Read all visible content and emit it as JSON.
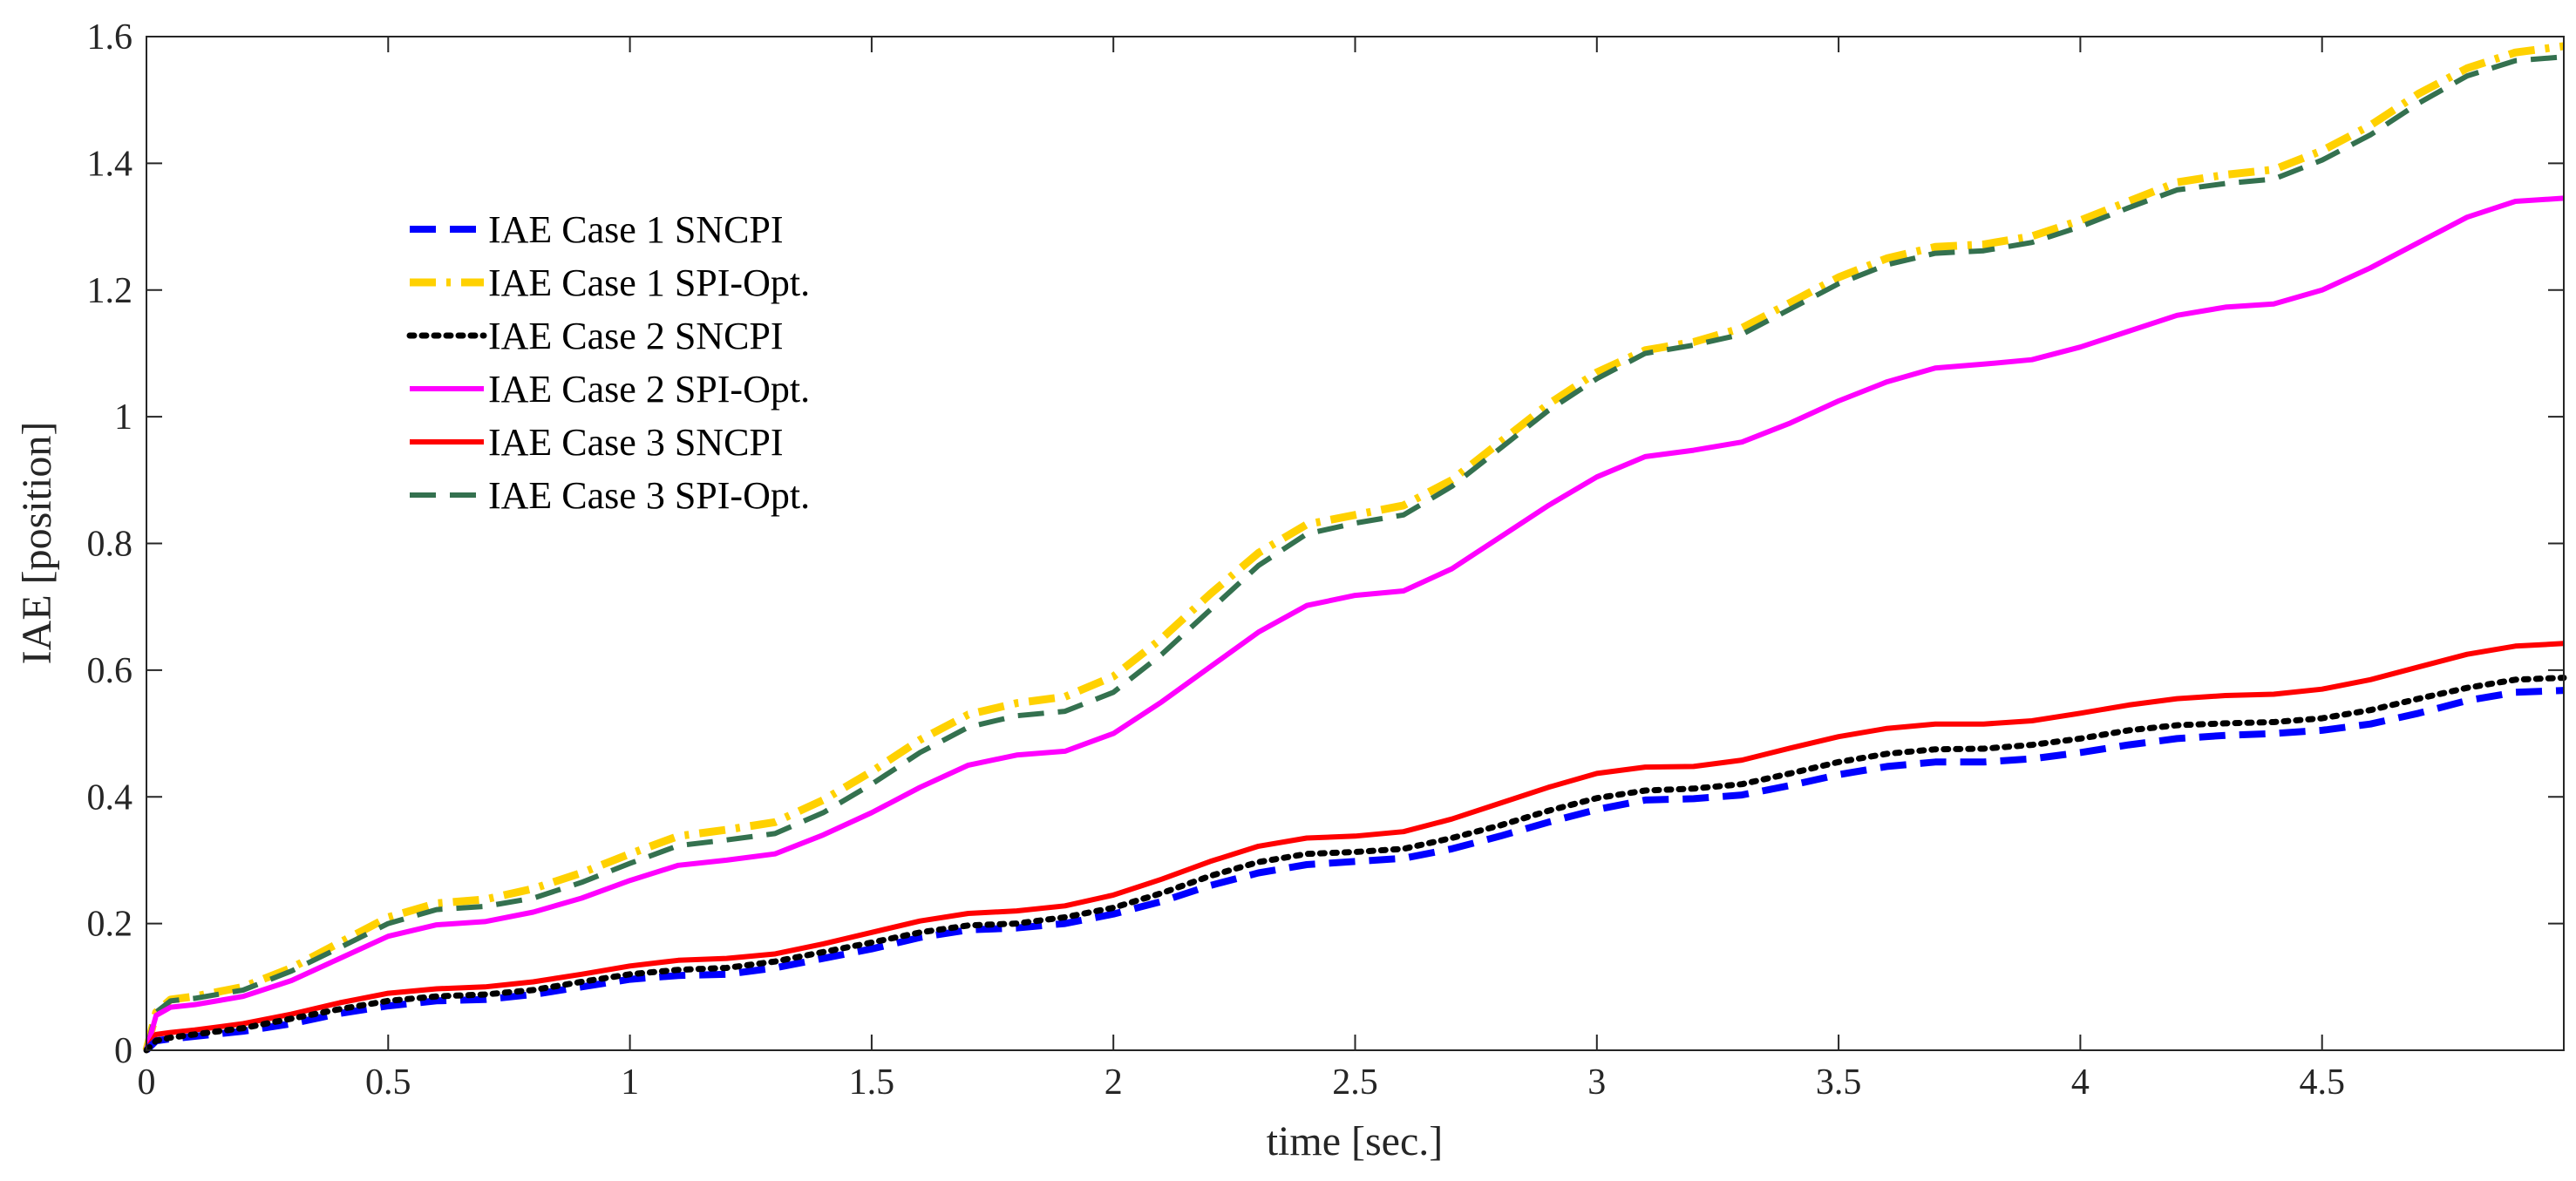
{
  "chart_data": {
    "type": "line",
    "title": "",
    "xlabel": "time  [sec.]",
    "ylabel": "IAE [position]",
    "xlim": [
      0,
      5
    ],
    "ylim": [
      0,
      1.6
    ],
    "x_ticks": [
      0,
      0.5,
      1,
      1.5,
      2,
      2.5,
      3,
      3.5,
      4,
      4.5
    ],
    "x_tick_labels": [
      "0",
      "0.5",
      "1",
      "1.5",
      "2",
      "2.5",
      "3",
      "3.5",
      "4",
      "4.5"
    ],
    "y_ticks": [
      0,
      0.2,
      0.4,
      0.6,
      0.8,
      1,
      1.2,
      1.4,
      1.6
    ],
    "y_tick_labels": [
      "0",
      "0.2",
      "0.4",
      "0.6",
      "0.8",
      "1",
      "1.2",
      "1.4",
      "1.6"
    ],
    "grid": false,
    "legend_position": "upper-left",
    "x": [
      0,
      0.02,
      0.05,
      0.1,
      0.2,
      0.3,
      0.4,
      0.5,
      0.6,
      0.7,
      0.8,
      0.9,
      1.0,
      1.1,
      1.2,
      1.3,
      1.4,
      1.5,
      1.6,
      1.7,
      1.8,
      1.9,
      2.0,
      2.1,
      2.2,
      2.3,
      2.4,
      2.5,
      2.6,
      2.7,
      2.8,
      2.9,
      3.0,
      3.1,
      3.2,
      3.3,
      3.4,
      3.5,
      3.6,
      3.7,
      3.8,
      3.9,
      4.0,
      4.1,
      4.2,
      4.3,
      4.4,
      4.5,
      4.6,
      4.7,
      4.8,
      4.9,
      5.0
    ],
    "series": [
      {
        "name": "IAE Case 1 SNCPI",
        "color": "#0000ff",
        "style": "dashed",
        "values": [
          0,
          0.015,
          0.018,
          0.022,
          0.03,
          0.042,
          0.058,
          0.07,
          0.078,
          0.08,
          0.088,
          0.1,
          0.112,
          0.118,
          0.12,
          0.13,
          0.145,
          0.16,
          0.178,
          0.19,
          0.193,
          0.2,
          0.215,
          0.235,
          0.26,
          0.28,
          0.293,
          0.298,
          0.303,
          0.318,
          0.338,
          0.36,
          0.38,
          0.395,
          0.397,
          0.403,
          0.418,
          0.435,
          0.448,
          0.455,
          0.455,
          0.46,
          0.47,
          0.482,
          0.492,
          0.497,
          0.5,
          0.505,
          0.515,
          0.532,
          0.552,
          0.565,
          0.568
        ]
      },
      {
        "name": "IAE Case 1 SPI-Opt.",
        "color": "#ffd100",
        "style": "dash-dot",
        "values": [
          0,
          0.06,
          0.08,
          0.085,
          0.1,
          0.13,
          0.17,
          0.21,
          0.232,
          0.238,
          0.255,
          0.28,
          0.31,
          0.338,
          0.348,
          0.36,
          0.395,
          0.44,
          0.49,
          0.53,
          0.548,
          0.558,
          0.59,
          0.65,
          0.72,
          0.785,
          0.83,
          0.845,
          0.86,
          0.9,
          0.96,
          1.02,
          1.07,
          1.105,
          1.118,
          1.14,
          1.18,
          1.22,
          1.25,
          1.268,
          1.272,
          1.285,
          1.31,
          1.34,
          1.37,
          1.382,
          1.39,
          1.42,
          1.46,
          1.51,
          1.55,
          1.575,
          1.585
        ]
      },
      {
        "name": "IAE Case 2 SNCPI",
        "color": "#000000",
        "style": "dotted",
        "values": [
          0,
          0.015,
          0.02,
          0.025,
          0.035,
          0.05,
          0.065,
          0.078,
          0.085,
          0.088,
          0.095,
          0.108,
          0.12,
          0.127,
          0.13,
          0.14,
          0.155,
          0.17,
          0.186,
          0.197,
          0.2,
          0.21,
          0.225,
          0.248,
          0.275,
          0.297,
          0.31,
          0.313,
          0.318,
          0.335,
          0.355,
          0.378,
          0.398,
          0.41,
          0.413,
          0.42,
          0.437,
          0.455,
          0.468,
          0.475,
          0.476,
          0.482,
          0.492,
          0.505,
          0.513,
          0.516,
          0.518,
          0.524,
          0.537,
          0.555,
          0.572,
          0.585,
          0.588
        ]
      },
      {
        "name": "IAE Case 2 SPI-Opt.",
        "color": "#ff00ff",
        "style": "solid",
        "values": [
          0,
          0.055,
          0.068,
          0.072,
          0.085,
          0.11,
          0.145,
          0.18,
          0.198,
          0.203,
          0.218,
          0.24,
          0.268,
          0.292,
          0.3,
          0.31,
          0.34,
          0.375,
          0.415,
          0.45,
          0.466,
          0.472,
          0.5,
          0.55,
          0.605,
          0.66,
          0.702,
          0.718,
          0.725,
          0.76,
          0.81,
          0.86,
          0.905,
          0.937,
          0.947,
          0.96,
          0.99,
          1.025,
          1.055,
          1.077,
          1.083,
          1.09,
          1.11,
          1.135,
          1.16,
          1.173,
          1.178,
          1.2,
          1.235,
          1.275,
          1.315,
          1.34,
          1.345
        ]
      },
      {
        "name": "IAE Case 3 SNCPI",
        "color": "#ff0000",
        "style": "solid",
        "values": [
          0,
          0.025,
          0.028,
          0.032,
          0.042,
          0.057,
          0.075,
          0.09,
          0.097,
          0.1,
          0.108,
          0.12,
          0.133,
          0.142,
          0.145,
          0.152,
          0.168,
          0.186,
          0.204,
          0.216,
          0.22,
          0.228,
          0.245,
          0.27,
          0.298,
          0.322,
          0.335,
          0.338,
          0.345,
          0.365,
          0.39,
          0.415,
          0.437,
          0.447,
          0.448,
          0.458,
          0.477,
          0.495,
          0.508,
          0.515,
          0.515,
          0.52,
          0.532,
          0.545,
          0.555,
          0.56,
          0.562,
          0.57,
          0.585,
          0.605,
          0.625,
          0.638,
          0.642
        ]
      },
      {
        "name": "IAE Case 3 SPI-Opt.",
        "color": "#34714f",
        "style": "dashed",
        "values": [
          0,
          0.06,
          0.078,
          0.082,
          0.095,
          0.125,
          0.162,
          0.2,
          0.222,
          0.227,
          0.24,
          0.265,
          0.295,
          0.323,
          0.332,
          0.342,
          0.375,
          0.42,
          0.47,
          0.51,
          0.528,
          0.535,
          0.565,
          0.625,
          0.695,
          0.765,
          0.815,
          0.832,
          0.845,
          0.89,
          0.95,
          1.01,
          1.06,
          1.1,
          1.113,
          1.13,
          1.17,
          1.21,
          1.24,
          1.258,
          1.262,
          1.275,
          1.3,
          1.33,
          1.358,
          1.368,
          1.375,
          1.405,
          1.445,
          1.495,
          1.538,
          1.562,
          1.568
        ]
      }
    ]
  }
}
